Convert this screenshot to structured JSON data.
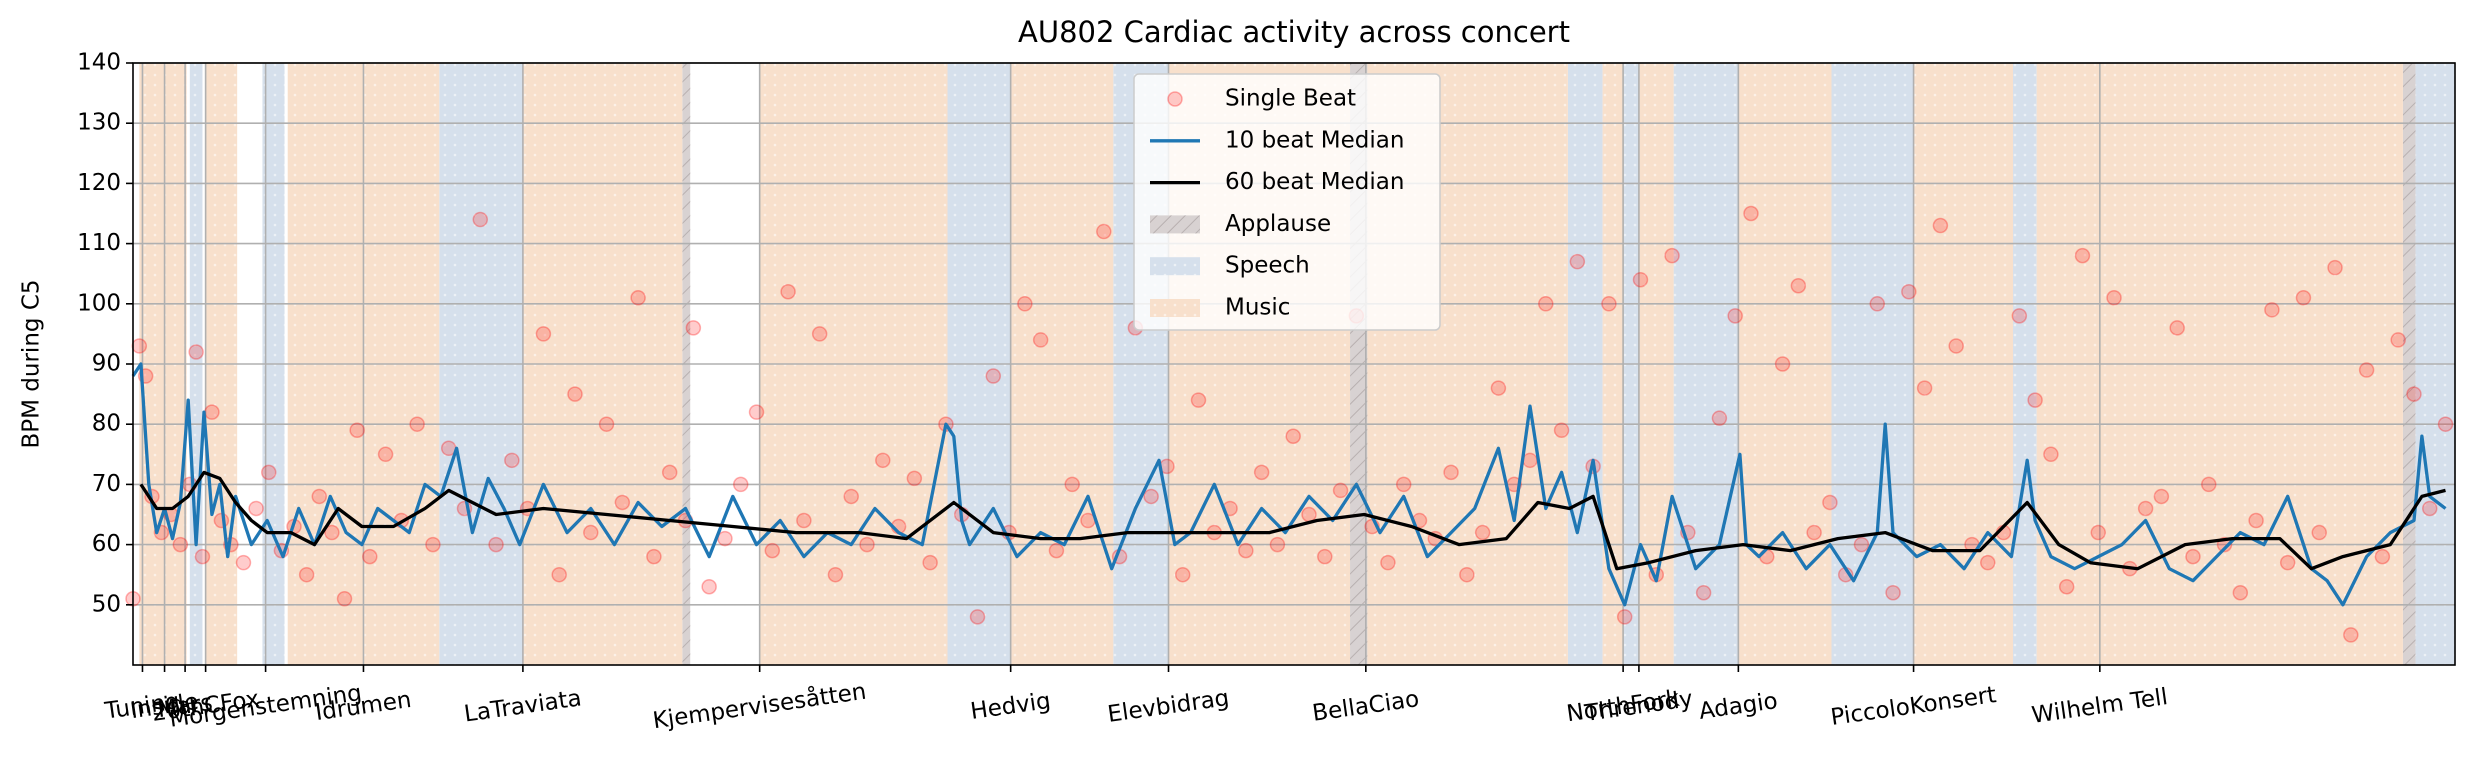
{
  "chart_data": {
    "type": "scatter",
    "title": "AU802 Cardiac activity across concert",
    "ylabel": "BPM during C5",
    "xlim": [
      0,
      1471
    ],
    "ylim": [
      40,
      140
    ],
    "yticks": [
      50,
      60,
      70,
      80,
      90,
      100,
      110,
      120,
      130,
      140
    ],
    "xticks": [
      {
        "value": 6,
        "label": "Tuning"
      },
      {
        "value": 20,
        "label": "Inside"
      },
      {
        "value": 33,
        "label": "Mars"
      },
      {
        "value": 46,
        "label": "20thCFox"
      },
      {
        "value": 84,
        "label": "Morgenstemning"
      },
      {
        "value": 146,
        "label": "Idrumen"
      },
      {
        "value": 247,
        "label": "LaTraviata"
      },
      {
        "value": 397,
        "label": "Kjempervisesåtten"
      },
      {
        "value": 556,
        "label": "Hedvig"
      },
      {
        "value": 656,
        "label": "Elevbidrag"
      },
      {
        "value": 781,
        "label": "BellaCiao"
      },
      {
        "value": 944,
        "label": "NorthFork"
      },
      {
        "value": 954,
        "label": "Threnody"
      },
      {
        "value": 1017,
        "label": "Adagio"
      },
      {
        "value": 1128,
        "label": "PiccoloKonsert"
      },
      {
        "value": 1246,
        "label": "Wilhelm Tell"
      }
    ],
    "grid": true,
    "legend": "upper center",
    "series": [
      {
        "name": "Single Beat",
        "type": "scatter",
        "color": "#ff0000",
        "x": [
          0,
          4,
          8,
          12,
          18,
          24,
          30,
          36,
          40,
          44,
          50,
          56,
          62,
          70,
          78,
          86,
          94,
          102,
          110,
          118,
          126,
          134,
          142,
          150,
          160,
          170,
          180,
          190,
          200,
          210,
          220,
          230,
          240,
          250,
          260,
          270,
          280,
          290,
          300,
          310,
          320,
          330,
          340,
          350,
          355,
          365,
          375,
          385,
          395,
          405,
          415,
          425,
          435,
          445,
          455,
          465,
          475,
          485,
          495,
          505,
          515,
          525,
          535,
          545,
          555,
          565,
          575,
          585,
          595,
          605,
          615,
          625,
          635,
          645,
          655,
          665,
          675,
          685,
          695,
          705,
          715,
          725,
          735,
          745,
          755,
          765,
          775,
          785,
          795,
          805,
          815,
          825,
          835,
          845,
          855,
          865,
          875,
          885,
          895,
          905,
          915,
          925,
          935,
          945,
          955,
          965,
          975,
          985,
          995,
          1005,
          1015,
          1025,
          1035,
          1045,
          1055,
          1065,
          1075,
          1085,
          1095,
          1105,
          1115,
          1125,
          1135,
          1145,
          1155,
          1165,
          1175,
          1185,
          1195,
          1205,
          1215,
          1225,
          1235,
          1245,
          1255,
          1265,
          1275,
          1285,
          1295,
          1305,
          1315,
          1325,
          1335,
          1345,
          1355,
          1365,
          1375,
          1385,
          1395,
          1405,
          1415,
          1425,
          1435,
          1445,
          1455,
          1465
        ],
        "values": [
          51,
          93,
          88,
          68,
          62,
          65,
          60,
          70,
          92,
          58,
          82,
          64,
          60,
          57,
          66,
          72,
          59,
          63,
          55,
          68,
          62,
          51,
          79,
          58,
          75,
          64,
          80,
          60,
          76,
          66,
          114,
          60,
          74,
          66,
          95,
          55,
          85,
          62,
          80,
          67,
          101,
          58,
          72,
          64,
          96,
          53,
          61,
          70,
          82,
          59,
          102,
          64,
          95,
          55,
          68,
          60,
          74,
          63,
          71,
          57,
          80,
          65,
          48,
          88,
          62,
          100,
          94,
          59,
          70,
          64,
          112,
          58,
          96,
          68,
          73,
          55,
          84,
          62,
          66,
          59,
          72,
          60,
          78,
          65,
          58,
          69,
          98,
          63,
          57,
          70,
          64,
          61,
          72,
          55,
          62,
          86,
          70,
          74,
          100,
          79,
          107,
          73,
          100,
          48,
          104,
          55,
          108,
          62,
          52,
          81,
          98,
          115,
          58,
          90,
          103,
          62,
          67,
          55,
          60,
          100,
          52,
          102,
          86,
          113,
          93,
          60,
          57,
          62,
          98,
          84,
          75,
          53,
          108,
          62,
          101,
          56,
          66,
          68,
          96,
          58,
          70,
          60,
          52,
          64,
          99,
          57,
          101,
          62,
          106,
          45,
          89,
          58,
          94,
          85,
          66,
          80
        ]
      },
      {
        "name": "10 beat Median",
        "type": "line",
        "color": "#1f77b4",
        "x": [
          0,
          5,
          10,
          15,
          20,
          25,
          30,
          35,
          40,
          45,
          50,
          55,
          60,
          65,
          75,
          85,
          95,
          105,
          115,
          125,
          135,
          145,
          155,
          165,
          175,
          185,
          195,
          205,
          215,
          225,
          235,
          245,
          260,
          275,
          290,
          305,
          320,
          335,
          350,
          365,
          380,
          395,
          410,
          425,
          440,
          455,
          470,
          485,
          500,
          515,
          520,
          525,
          530,
          545,
          560,
          575,
          590,
          605,
          620,
          635,
          650,
          660,
          670,
          685,
          700,
          715,
          730,
          745,
          760,
          775,
          790,
          805,
          820,
          835,
          850,
          865,
          875,
          885,
          895,
          905,
          915,
          925,
          935,
          945,
          955,
          965,
          975,
          990,
          1005,
          1018,
          1022,
          1030,
          1045,
          1060,
          1075,
          1090,
          1105,
          1110,
          1115,
          1130,
          1145,
          1160,
          1175,
          1190,
          1200,
          1205,
          1215,
          1230,
          1245,
          1260,
          1275,
          1290,
          1305,
          1320,
          1335,
          1350,
          1365,
          1380,
          1390,
          1400,
          1415,
          1430,
          1445,
          1450,
          1455,
          1465
        ],
        "values": [
          88,
          90,
          70,
          62,
          66,
          61,
          67,
          84,
          60,
          82,
          65,
          70,
          58,
          68,
          60,
          64,
          58,
          66,
          60,
          68,
          62,
          60,
          66,
          64,
          62,
          70,
          68,
          76,
          62,
          71,
          66,
          60,
          70,
          62,
          66,
          60,
          67,
          63,
          66,
          58,
          68,
          60,
          64,
          58,
          62,
          60,
          66,
          62,
          60,
          80,
          78,
          64,
          60,
          66,
          58,
          62,
          60,
          68,
          56,
          66,
          74,
          60,
          62,
          70,
          60,
          66,
          62,
          68,
          64,
          70,
          62,
          68,
          58,
          62,
          66,
          76,
          64,
          83,
          66,
          72,
          62,
          74,
          56,
          50,
          60,
          54,
          68,
          56,
          60,
          75,
          60,
          58,
          62,
          56,
          60,
          54,
          62,
          80,
          62,
          58,
          60,
          56,
          62,
          58,
          74,
          64,
          58,
          56,
          58,
          60,
          64,
          56,
          54,
          58,
          62,
          60,
          68,
          56,
          54,
          50,
          58,
          62,
          64,
          78,
          68,
          66
        ]
      },
      {
        "name": "60 beat Median",
        "type": "line",
        "color": "#000000",
        "x": [
          5,
          15,
          25,
          35,
          45,
          55,
          65,
          75,
          85,
          100,
          115,
          130,
          145,
          165,
          185,
          200,
          215,
          230,
          260,
          300,
          340,
          380,
          420,
          460,
          490,
          520,
          545,
          575,
          600,
          630,
          660,
          690,
          720,
          750,
          780,
          810,
          840,
          870,
          890,
          910,
          925,
          940,
          960,
          990,
          1020,
          1050,
          1080,
          1110,
          1140,
          1170,
          1200,
          1220,
          1240,
          1270,
          1300,
          1330,
          1360,
          1380,
          1400,
          1430,
          1450,
          1465
        ],
        "values": [
          70,
          66,
          66,
          68,
          72,
          71,
          67,
          64,
          62,
          62,
          60,
          66,
          63,
          63,
          66,
          69,
          67,
          65,
          66,
          65,
          64,
          63,
          62,
          62,
          61,
          67,
          62,
          61,
          61,
          62,
          62,
          62,
          62,
          64,
          65,
          63,
          60,
          61,
          67,
          66,
          68,
          56,
          57,
          59,
          60,
          59,
          61,
          62,
          59,
          59,
          67,
          60,
          57,
          56,
          60,
          61,
          61,
          56,
          58,
          60,
          68,
          69
        ]
      }
    ],
    "spans": [
      {
        "name": "Applause",
        "color": "#d8d2d2",
        "ranges": [
          [
            348,
            353
          ],
          [
            771,
            782
          ],
          [
            1438,
            1446
          ]
        ]
      },
      {
        "name": "Speech",
        "color": "#d6e0ec",
        "ranges": [
          [
            36,
            44
          ],
          [
            82,
            96
          ],
          [
            194,
            247
          ],
          [
            516,
            556
          ],
          [
            621,
            656
          ],
          [
            909,
            931
          ],
          [
            944,
            954
          ],
          [
            976,
            1017
          ],
          [
            1076,
            1128
          ],
          [
            1191,
            1206
          ],
          [
            1446,
            1471
          ]
        ]
      },
      {
        "name": "Music",
        "color": "#f8e0cc",
        "ranges": [
          [
            4,
            34
          ],
          [
            46,
            66
          ],
          [
            98,
            194
          ],
          [
            247,
            348
          ],
          [
            397,
            516
          ],
          [
            556,
            621
          ],
          [
            656,
            771
          ],
          [
            782,
            909
          ],
          [
            931,
            944
          ],
          [
            954,
            976
          ],
          [
            1017,
            1076
          ],
          [
            1128,
            1191
          ],
          [
            1206,
            1438
          ]
        ]
      }
    ]
  }
}
